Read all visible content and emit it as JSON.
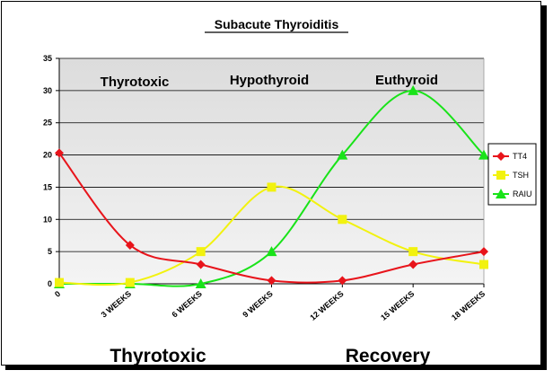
{
  "chart_data": {
    "type": "line",
    "title": "Subacute Thyroiditis",
    "categories": [
      "0",
      "3 WEEKS",
      "6 WEEKS",
      "9 WEEKS",
      "12 WEEKS",
      "15 WEEKS",
      "18 WEEKS"
    ],
    "ylim": [
      0,
      35
    ],
    "yticks": [
      "0",
      "5",
      "10",
      "15",
      "20",
      "25",
      "30",
      "35"
    ],
    "grid": true,
    "legend_position": "right",
    "series": [
      {
        "name": "TT4",
        "color": "#e8141b",
        "marker": "diamond",
        "values": [
          20.3,
          6,
          3,
          0.5,
          0.5,
          3,
          5
        ]
      },
      {
        "name": "TSH",
        "color": "#f2f20f",
        "marker": "square",
        "values": [
          0.2,
          0.2,
          5,
          15,
          10,
          5,
          3
        ]
      },
      {
        "name": "RAIU",
        "color": "#19e319",
        "marker": "triangle",
        "values": [
          0,
          0,
          0,
          5,
          20,
          30,
          20
        ]
      }
    ],
    "phase_labels": [
      "Thyrotoxic",
      "Hypothyroid",
      "Euthyroid"
    ],
    "stage_labels": [
      "Thyrotoxic",
      "Recovery"
    ]
  }
}
